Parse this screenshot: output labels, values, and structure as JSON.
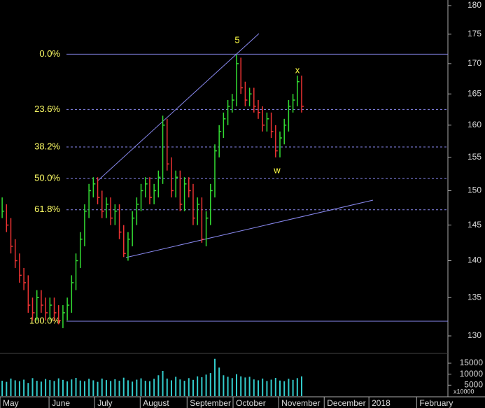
{
  "chart_data": {
    "type": "hlc",
    "high": [
      149,
      148,
      146,
      143,
      141,
      139,
      138,
      135,
      136,
      136,
      135,
      135,
      135,
      134,
      134,
      135,
      138,
      141,
      144,
      148,
      151,
      152,
      152,
      150,
      149,
      149,
      148,
      148,
      145,
      144,
      147,
      149,
      151,
      152,
      152,
      151,
      153,
      161.5,
      161,
      155,
      153,
      153,
      152,
      152,
      151,
      149,
      149,
      147,
      151,
      157,
      160,
      162,
      164,
      165,
      171.5,
      171,
      167,
      166,
      166,
      164,
      163,
      162,
      162,
      160,
      159,
      161,
      164,
      165,
      168,
      168
    ],
    "low": [
      146,
      144,
      141,
      139,
      137,
      136,
      133,
      132,
      132,
      133,
      132,
      132,
      132,
      131.5,
      131,
      132,
      133,
      136,
      139,
      142,
      146,
      149,
      148,
      146,
      146,
      145,
      145,
      143,
      140.5,
      140,
      142,
      145,
      147,
      149,
      148,
      148,
      149,
      151,
      153,
      149,
      149,
      147,
      147,
      149,
      145,
      145,
      142.5,
      142,
      145,
      149,
      155,
      158,
      160,
      162,
      163,
      165,
      163,
      163,
      162,
      161,
      159,
      159,
      158,
      155,
      155,
      157,
      159,
      162,
      163,
      162
    ],
    "close": [
      147,
      145,
      142,
      140,
      138,
      137,
      134,
      133,
      135,
      134,
      133,
      134,
      133,
      132,
      133,
      134,
      137,
      140,
      143,
      147,
      150,
      151,
      149,
      147,
      148,
      146,
      147,
      144,
      141,
      143,
      146,
      148,
      150,
      151,
      149,
      150,
      152,
      160,
      154,
      150,
      152,
      148,
      151,
      150,
      146,
      148,
      143,
      146,
      150,
      156,
      159,
      161,
      163,
      164,
      170,
      166,
      164,
      165,
      163,
      162,
      160,
      161,
      159,
      156,
      158,
      160,
      163,
      164,
      167,
      163
    ],
    "volume": [
      7000,
      6500,
      8000,
      7200,
      6800,
      7500,
      6000,
      8200,
      7000,
      6600,
      7800,
      7300,
      6900,
      8100,
      7400,
      6700,
      7600,
      8300,
      7100,
      6800,
      7900,
      7200,
      6500,
      8000,
      7300,
      6900,
      7700,
      7000,
      8400,
      7200,
      6600,
      7500,
      8100,
      7000,
      6800,
      7900,
      9500,
      11500,
      8000,
      7200,
      8800,
      7600,
      7000,
      8200,
      7400,
      9000,
      8600,
      9800,
      10500,
      17000,
      13000,
      9500,
      8800,
      8200,
      10000,
      9000,
      8500,
      8800,
      7600,
      7200,
      8000,
      6900,
      7500,
      8300,
      7100,
      6800,
      7900,
      7400,
      8200,
      9000
    ],
    "up_color": "#33dd33",
    "down_color": "#ee3333",
    "volume_color": "#33cccc",
    "scale": "log",
    "ylim": [
      130,
      180
    ],
    "yticks": [
      130,
      135,
      140,
      145,
      150,
      155,
      160,
      165,
      170,
      175,
      180
    ],
    "volume_ylim": [
      0,
      15000
    ],
    "volume_ticks": [
      5000,
      10000,
      15000
    ],
    "volume_unit": "x10000",
    "xlim": [
      -0.5,
      102.7
    ],
    "xticks": [
      {
        "value": -0.5,
        "label": "May"
      },
      {
        "value": 10.8,
        "label": "June"
      },
      {
        "value": 21.3,
        "label": "July"
      },
      {
        "value": 31.8,
        "label": "August"
      },
      {
        "value": 42.6,
        "label": "September"
      },
      {
        "value": 53.2,
        "label": "October"
      },
      {
        "value": 63.7,
        "label": "November"
      },
      {
        "value": 74.2,
        "label": "December"
      },
      {
        "value": 84.5,
        "label": "2018"
      },
      {
        "value": 95.5,
        "label": "February"
      }
    ],
    "fib_levels": [
      {
        "label": "0.0%",
        "value": 171.6,
        "style": "solid"
      },
      {
        "label": "23.6%",
        "value": 162.5,
        "style": "dashed"
      },
      {
        "label": "38.2%",
        "value": 156.6,
        "style": "dashed"
      },
      {
        "label": "50.0%",
        "value": 151.8,
        "style": "dashed"
      },
      {
        "label": "61.8%",
        "value": 147.2,
        "style": "dashed"
      },
      {
        "label": "100.0%",
        "value": 131.9,
        "style": "solid"
      }
    ],
    "annotations": [
      "5",
      "x",
      "w"
    ]
  }
}
